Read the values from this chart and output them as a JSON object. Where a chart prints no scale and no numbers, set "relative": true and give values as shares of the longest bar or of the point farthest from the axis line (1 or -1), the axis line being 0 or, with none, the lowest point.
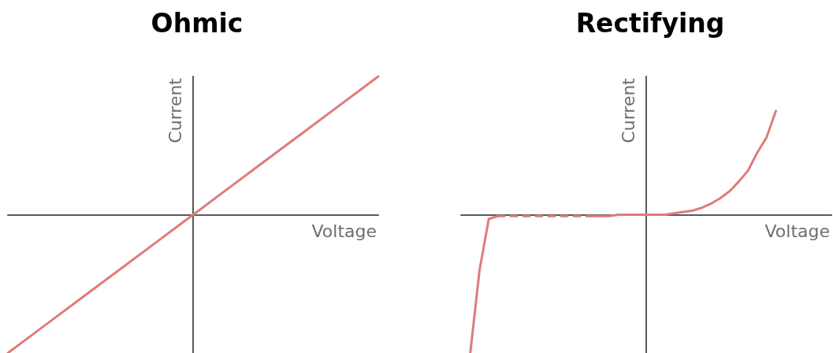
{
  "chart_data": [
    {
      "type": "line",
      "title": "Ohmic",
      "xlabel": "Voltage",
      "ylabel": "Current",
      "relative": true,
      "marker": "none",
      "tick_labels": false,
      "categories": [
        null,
        null,
        null,
        null,
        null,
        null,
        null,
        null,
        null,
        null,
        null
      ],
      "series": [
        {
          "color": "#e07b7b",
          "line_style": "solid",
          "values": [
            -1,
            -0.8,
            -0.6,
            -0.4,
            -0.2,
            0,
            0.2,
            0.4,
            0.6,
            0.8,
            1
          ]
        }
      ]
    },
    {
      "type": "line",
      "title": "Rectifying",
      "xlabel": "Voltage",
      "ylabel": "Current",
      "relative": true,
      "marker": "none",
      "tick_labels": false,
      "categories": [
        null,
        null,
        null,
        null,
        null,
        null,
        null,
        null,
        null,
        null,
        null,
        null,
        null,
        null,
        null,
        null,
        null,
        null,
        null,
        null,
        null,
        null,
        null,
        null,
        null,
        null,
        null,
        null,
        null,
        null,
        null,
        null,
        null,
        null,
        null,
        null,
        null,
        null,
        null,
        null,
        null
      ],
      "series": [
        {
          "color": "#e07b7b",
          "line_style": "solid",
          "values": [
            null,
            -1,
            -0.4,
            -0.03,
            -0.01,
            null,
            null,
            null,
            null,
            null,
            null,
            null,
            null,
            null,
            null,
            null,
            null,
            null,
            null,
            null,
            null,
            null,
            null,
            null,
            null,
            null,
            null,
            null,
            null,
            null,
            null,
            null,
            null,
            null,
            null,
            null,
            null,
            null,
            null,
            null,
            null
          ]
        },
        {
          "color": "#e07b7b",
          "line_style": "dashed",
          "values": [
            null,
            null,
            null,
            null,
            -0.01,
            -0.01,
            -0.01,
            -0.01,
            -0.01,
            -0.01,
            -0.01,
            -0.01,
            -0.01,
            -0.01,
            -0.01,
            null,
            null,
            null,
            null,
            null,
            null,
            null,
            null,
            null,
            null,
            null,
            null,
            null,
            null,
            null,
            null,
            null,
            null,
            null,
            null,
            null,
            null,
            null,
            null,
            null,
            null
          ]
        },
        {
          "color": "#e07b7b",
          "line_style": "solid",
          "values": [
            null,
            null,
            null,
            null,
            null,
            null,
            null,
            null,
            null,
            null,
            null,
            null,
            null,
            null,
            -0.01,
            -0.01,
            -0.01,
            0,
            0,
            0,
            0,
            0,
            0,
            0.01,
            0.02,
            0.03,
            0.05,
            0.08,
            0.12,
            0.17,
            0.24,
            0.32,
            0.45,
            0.56,
            0.75,
            null,
            null,
            null,
            null,
            null,
            null
          ]
        }
      ]
    }
  ]
}
